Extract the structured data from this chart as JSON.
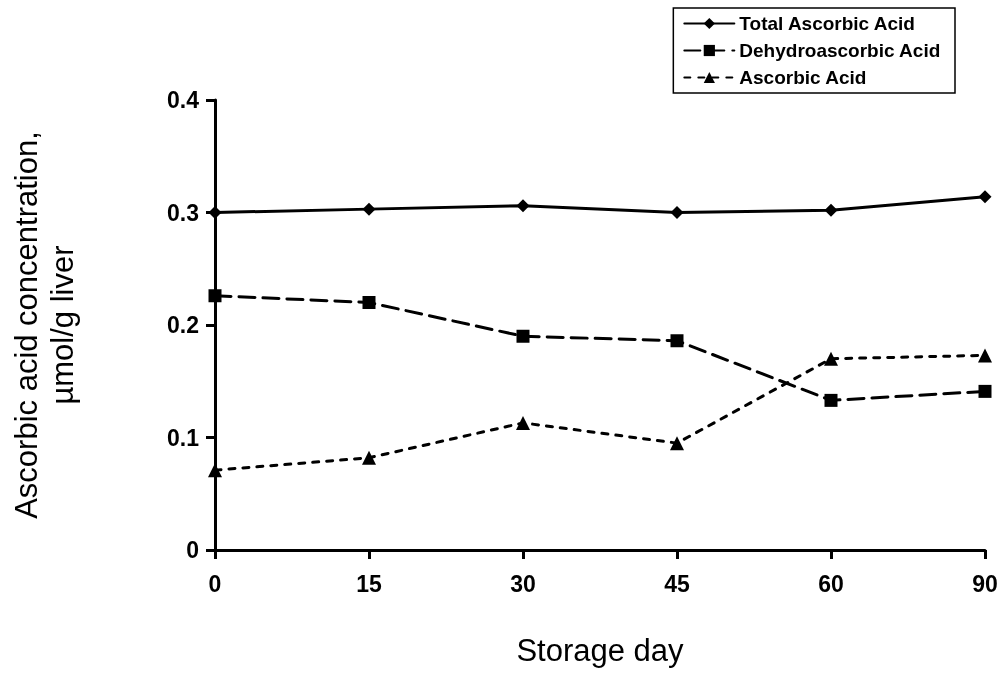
{
  "chart_data": {
    "type": "line",
    "xlabel": "Storage day",
    "ylabel": "Ascorbic acid concentration,\nµmol/g liver",
    "categories": [
      "0",
      "15",
      "30",
      "45",
      "60",
      "90"
    ],
    "ylim": [
      0,
      0.4
    ],
    "yticks": [
      0,
      0.1,
      0.2,
      0.3,
      0.4
    ],
    "grid": false,
    "legend": "top right",
    "series": [
      {
        "name": "Total Ascorbic Acid",
        "color": "#000000",
        "marker": "diamond",
        "line_style": "solid",
        "values": [
          0.3,
          0.303,
          0.306,
          0.3,
          0.302,
          0.314
        ]
      },
      {
        "name": "Dehydroascorbic Acid",
        "color": "#000000",
        "marker": "square",
        "line_style": "dashed",
        "values": [
          0.226,
          0.22,
          0.19,
          0.186,
          0.133,
          0.141
        ]
      },
      {
        "name": "Ascorbic Acid",
        "color": "#000000",
        "marker": "triangle",
        "line_style": "dotted",
        "values": [
          0.071,
          0.082,
          0.113,
          0.095,
          0.17,
          0.173
        ]
      }
    ]
  }
}
